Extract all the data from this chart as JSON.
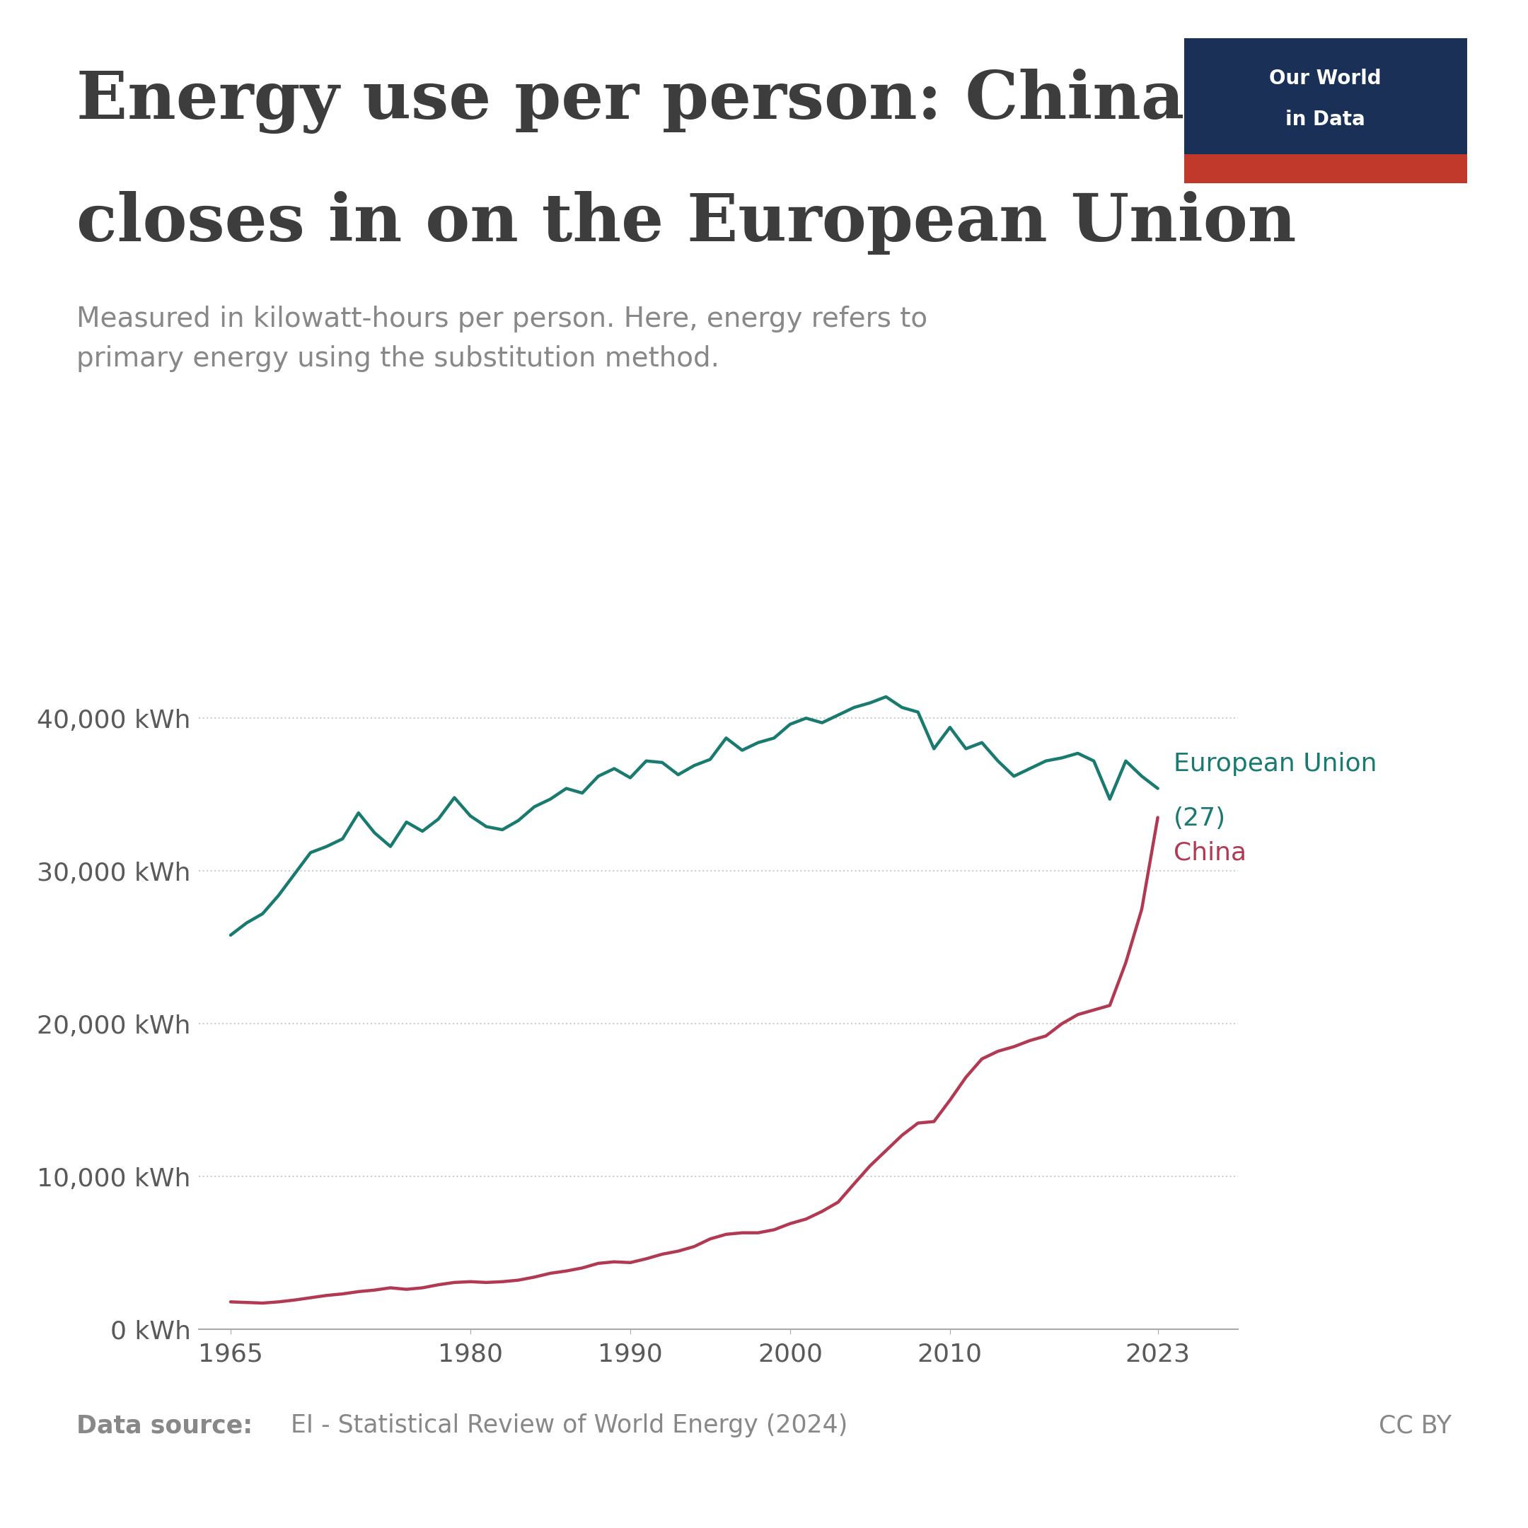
{
  "title_line1": "Energy use per person: China",
  "title_line2": "closes in on the European Union",
  "subtitle": "Measured in kilowatt-hours per person. Here, energy refers to\nprimary energy using the substitution method.",
  "data_source_bold": "Data source:",
  "data_source_normal": " EI - Statistical Review of World Energy (2024)",
  "cc_by": "CC BY",
  "eu_color": "#197A6F",
  "china_color": "#B13A52",
  "eu_label_line1": "European Union",
  "eu_label_line2": "(27)",
  "china_label": "China",
  "background_color": "#ffffff",
  "title_color": "#3d3d3d",
  "subtitle_color": "#888888",
  "source_color": "#888888",
  "tick_color": "#5a5a5a",
  "grid_color": "#cccccc",
  "spine_color": "#aaaaaa",
  "ytick_labels": [
    "0 kWh",
    "10,000 kWh",
    "20,000 kWh",
    "30,000 kWh",
    "40,000 kWh"
  ],
  "ytick_values": [
    0,
    10000,
    20000,
    30000,
    40000
  ],
  "xtick_labels": [
    "1965",
    "1980",
    "1990",
    "2000",
    "2010",
    "2023"
  ],
  "xtick_values": [
    1965,
    1980,
    1990,
    2000,
    2010,
    2023
  ],
  "ylim": [
    0,
    48000
  ],
  "xlim": [
    1963,
    2028
  ],
  "logo_bg": "#1a3057",
  "logo_red": "#c0392b",
  "eu_years": [
    1965,
    1966,
    1967,
    1968,
    1969,
    1970,
    1971,
    1972,
    1973,
    1974,
    1975,
    1976,
    1977,
    1978,
    1979,
    1980,
    1981,
    1982,
    1983,
    1984,
    1985,
    1986,
    1987,
    1988,
    1989,
    1990,
    1991,
    1992,
    1993,
    1994,
    1995,
    1996,
    1997,
    1998,
    1999,
    2000,
    2001,
    2002,
    2003,
    2004,
    2005,
    2006,
    2007,
    2008,
    2009,
    2010,
    2011,
    2012,
    2013,
    2014,
    2015,
    2016,
    2017,
    2018,
    2019,
    2020,
    2021,
    2022,
    2023
  ],
  "eu_values": [
    25800,
    26600,
    27200,
    28400,
    29800,
    31200,
    31600,
    32100,
    33800,
    32500,
    31600,
    33200,
    32600,
    33400,
    34800,
    33600,
    32900,
    32700,
    33300,
    34200,
    34700,
    35400,
    35100,
    36200,
    36700,
    36100,
    37200,
    37100,
    36300,
    36900,
    37300,
    38700,
    37900,
    38400,
    38700,
    39600,
    40000,
    39700,
    40200,
    40700,
    41000,
    41400,
    40700,
    40400,
    38000,
    39400,
    38000,
    38400,
    37200,
    36200,
    36700,
    37200,
    37400,
    37700,
    37200,
    34700,
    37200,
    36200,
    35400
  ],
  "china_years": [
    1965,
    1966,
    1967,
    1968,
    1969,
    1970,
    1971,
    1972,
    1973,
    1974,
    1975,
    1976,
    1977,
    1978,
    1979,
    1980,
    1981,
    1982,
    1983,
    1984,
    1985,
    1986,
    1987,
    1988,
    1989,
    1990,
    1991,
    1992,
    1993,
    1994,
    1995,
    1996,
    1997,
    1998,
    1999,
    2000,
    2001,
    2002,
    2003,
    2004,
    2005,
    2006,
    2007,
    2008,
    2009,
    2010,
    2011,
    2012,
    2013,
    2014,
    2015,
    2016,
    2017,
    2018,
    2019,
    2020,
    2021,
    2022,
    2023
  ],
  "china_values": [
    1800,
    1760,
    1720,
    1800,
    1920,
    2070,
    2220,
    2320,
    2470,
    2570,
    2720,
    2620,
    2720,
    2920,
    3070,
    3120,
    3070,
    3120,
    3220,
    3420,
    3670,
    3820,
    4020,
    4320,
    4420,
    4370,
    4620,
    4920,
    5120,
    5420,
    5920,
    6220,
    6320,
    6320,
    6520,
    6920,
    7220,
    7720,
    8320,
    9520,
    10700,
    11700,
    12700,
    13500,
    13600,
    15000,
    16500,
    17700,
    18200,
    18500,
    18900,
    19200,
    20000,
    20600,
    20900,
    21200,
    24000,
    27500,
    33500
  ]
}
